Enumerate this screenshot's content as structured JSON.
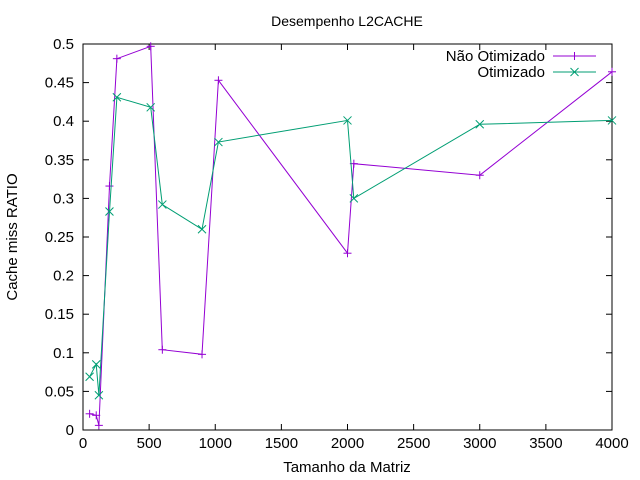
{
  "chart_data": {
    "type": "line",
    "title": "Desempenho L2CACHE",
    "xlabel": "Tamanho da Matriz",
    "ylabel": "Cache miss RATIO",
    "xlim": [
      0,
      4000
    ],
    "ylim": [
      0,
      0.5
    ],
    "xticks": [
      0,
      500,
      1000,
      1500,
      2000,
      2500,
      3000,
      3500,
      4000
    ],
    "xtick_labels": [
      "0",
      "500",
      "1000",
      "1500",
      "2000",
      "2500",
      "3000",
      "3500",
      "4000"
    ],
    "yticks": [
      0,
      0.05,
      0.1,
      0.15,
      0.2,
      0.25,
      0.3,
      0.35,
      0.4,
      0.45,
      0.5
    ],
    "ytick_labels": [
      "0",
      "0.05",
      "0.1",
      "0.15",
      "0.2",
      "0.25",
      "0.3",
      "0.35",
      "0.4",
      "0.45",
      "0.5"
    ],
    "grid": false,
    "legend_position": "top-right",
    "series": [
      {
        "name": "Não Otimizado",
        "color": "#9400d3",
        "marker": "plus",
        "x": [
          50,
          100,
          120,
          200,
          256,
          512,
          600,
          900,
          1024,
          2000,
          2048,
          3000,
          4000
        ],
        "y": [
          0.021,
          0.019,
          0.006,
          0.316,
          0.481,
          0.497,
          0.104,
          0.098,
          0.453,
          0.229,
          0.345,
          0.33,
          0.464
        ]
      },
      {
        "name": "Otimizado",
        "color": "#009e73",
        "marker": "cross",
        "x": [
          50,
          100,
          120,
          200,
          256,
          512,
          600,
          900,
          1024,
          2000,
          2048,
          3000,
          4000
        ],
        "y": [
          0.069,
          0.085,
          0.045,
          0.283,
          0.431,
          0.418,
          0.292,
          0.26,
          0.373,
          0.401,
          0.3,
          0.396,
          0.401
        ]
      }
    ]
  }
}
